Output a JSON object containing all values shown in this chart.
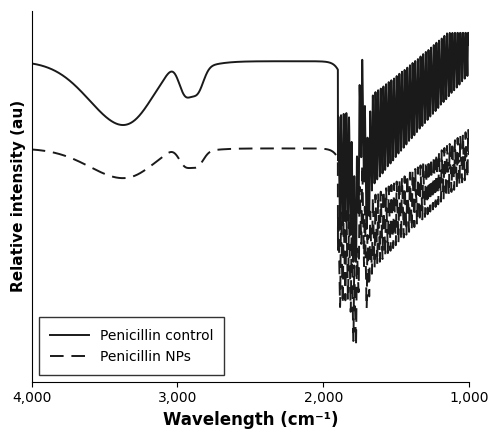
{
  "title": "",
  "xlabel": "Wavelength (cm⁻¹)",
  "ylabel": "Relative intensity (au)",
  "xlim": [
    4000,
    1000
  ],
  "legend_labels": [
    "Penicillin control",
    "Penicillin NPs"
  ],
  "background_color": "#ffffff",
  "line_color": "#1a1a1a",
  "solid_base": 0.82,
  "dashed_base": 0.42,
  "solid_fp_base": 0.3,
  "dashed_fp_base": -0.1
}
